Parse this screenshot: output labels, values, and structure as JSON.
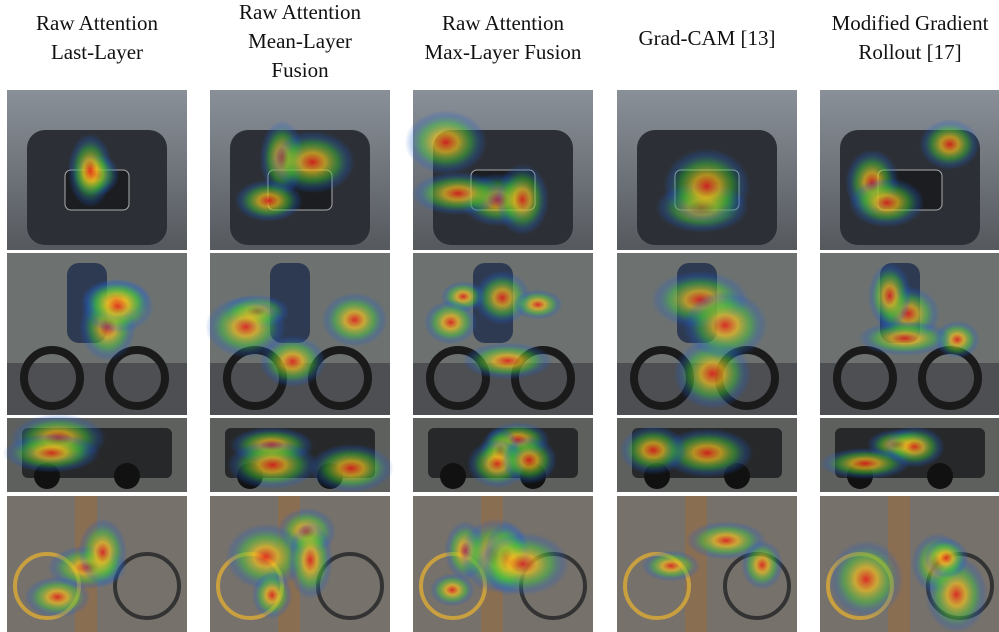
{
  "columns": [
    {
      "lines": [
        "Raw Attention",
        "Last-Layer"
      ]
    },
    {
      "lines": [
        "Raw Attention",
        "Mean-Layer",
        "Fusion"
      ]
    },
    {
      "lines": [
        "Raw Attention",
        "Max-Layer Fusion"
      ]
    },
    {
      "lines": [
        "Grad-CAM [13]"
      ]
    },
    {
      "lines": [
        "Modified Gradient",
        "Rollout [17]"
      ]
    }
  ]
}
